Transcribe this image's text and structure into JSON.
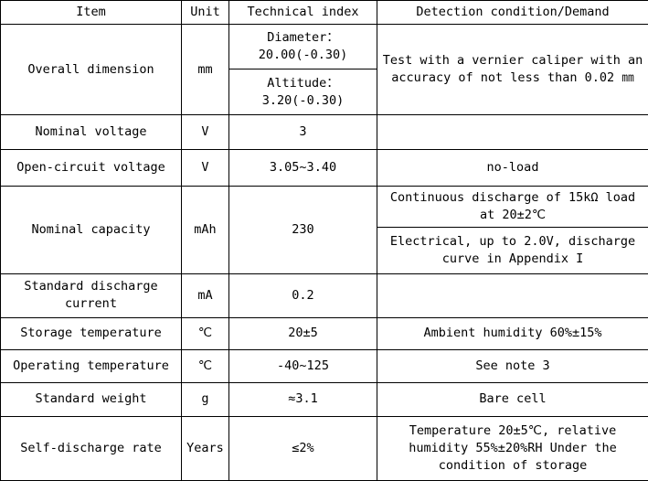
{
  "headers": {
    "item": "Item",
    "unit": "Unit",
    "technical_index": "Technical index",
    "detection": "Detection condition/Demand"
  },
  "rows": {
    "overall_dimension": {
      "item": "Overall dimension",
      "unit": "mm",
      "index_diameter": "Diameter：20.00(-0.30)",
      "index_altitude": "Altitude： 3.20(-0.30)",
      "detection": "Test with a vernier caliper with an accuracy of not less than 0.02 ㎜"
    },
    "nominal_voltage": {
      "item": "Nominal voltage",
      "unit": "V",
      "index": "3",
      "detection": ""
    },
    "open_circuit_voltage": {
      "item": "Open-circuit voltage",
      "unit": "V",
      "index": "3.05~3.40",
      "detection": "no-load"
    },
    "nominal_capacity": {
      "item": "Nominal capacity",
      "unit": "mAh",
      "index": "230",
      "detection_1": "Continuous discharge of 15kΩ load at 20±2℃",
      "detection_2": "Electrical, up to 2.0V, discharge curve in Appendix I"
    },
    "standard_discharge_current": {
      "item": "Standard discharge current",
      "unit": "mA",
      "index": "0.2",
      "detection": ""
    },
    "storage_temperature": {
      "item": "Storage temperature",
      "unit": "℃",
      "index": "20±5",
      "detection": "Ambient humidity 60%±15%"
    },
    "operating_temperature": {
      "item": "Operating temperature",
      "unit": "℃",
      "index": "-40~125",
      "detection": "See note 3"
    },
    "standard_weight": {
      "item": "Standard weight",
      "unit": "g",
      "index": "≈3.1",
      "detection": "Bare cell"
    },
    "self_discharge_rate": {
      "item": "Self-discharge rate",
      "unit": "Years",
      "index": "≤2%",
      "detection": "Temperature 20±5℃, relative humidity 55%±20%RH Under the condition of storage"
    }
  }
}
